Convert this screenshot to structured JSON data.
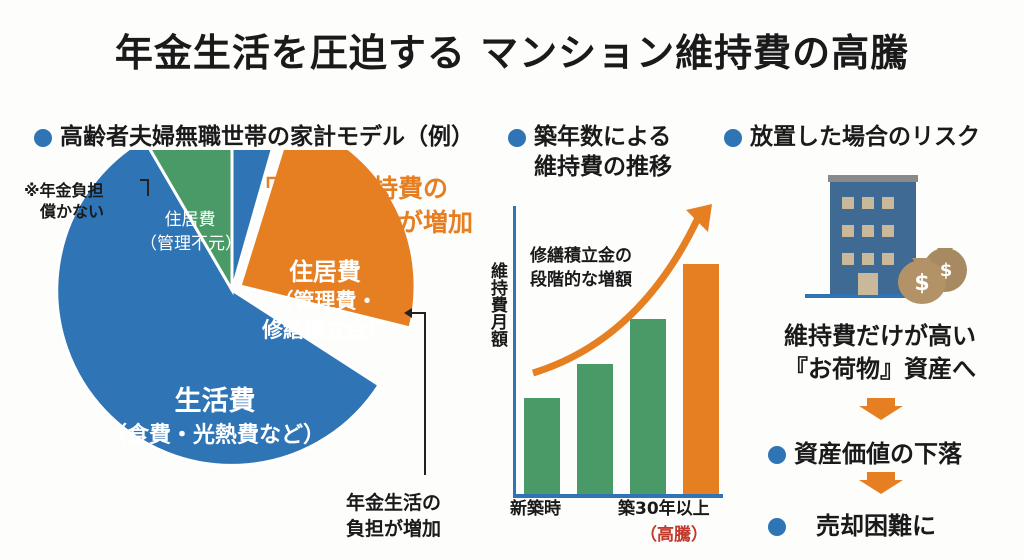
{
  "title": "年金生活を圧迫する マンション維持費の高騰",
  "sections": {
    "household": {
      "heading": "高齢者夫婦無職世帯の家計モデル（例）",
      "note": [
        "※年金負担",
        "償かない"
      ],
      "slices": {
        "green": {
          "label": "住居費",
          "sub": "（管理不元）"
        },
        "orange": {
          "label": "住居費",
          "sub1": "（管理費・",
          "sub2": "修繕積立金）"
        },
        "blue": {
          "label": "生活費",
          "sub": "（食費・光熱費など）"
        }
      },
      "callout_orange": [
        "維持費の",
        "割合が増加"
      ],
      "callout_bottom": [
        "年金生活の",
        "負担が増加"
      ]
    },
    "trend": {
      "heading": [
        "築年数による",
        "維持費の推移"
      ],
      "ylabel": "維持費月額",
      "arrow_label": [
        "修繕積立金の",
        "段階的な増額"
      ],
      "x_start": "新築時",
      "x_end": "築30年以上",
      "x_end_note": "（高騰）"
    },
    "risk": {
      "heading": "放置した場合のリスク",
      "text": [
        "維持費だけが高い",
        "『お荷物』資産へ"
      ],
      "steps": [
        "資産価値の下落",
        "売却困難に"
      ]
    }
  },
  "colors": {
    "blue": "#2f74b5",
    "orange": "#e67e22",
    "green": "#4a9a68",
    "red": "#c0392b"
  }
}
